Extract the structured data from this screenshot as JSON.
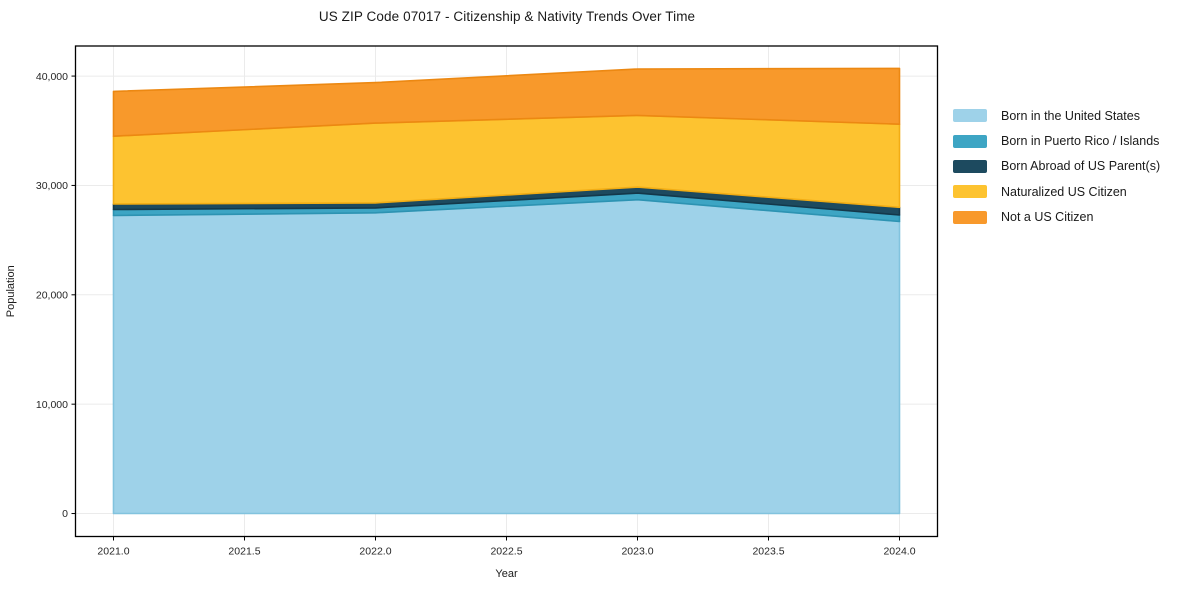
{
  "page": {
    "background": "#ffffff"
  },
  "chart_data": {
    "type": "area",
    "stacked": true,
    "title": "US ZIP Code 07017 - Citizenship & Nativity Trends Over Time",
    "xlabel": "Year",
    "ylabel": "Population",
    "x": [
      2021,
      2022,
      2023,
      2024
    ],
    "series": [
      {
        "name": "Born in the United States",
        "color": "#9ed2e9",
        "edge": "#82c3de",
        "values": [
          27250,
          27500,
          28700,
          26700
        ]
      },
      {
        "name": "Born in Puerto Rico / Islands",
        "color": "#3da5c4",
        "edge": "#2d93b2",
        "values": [
          550,
          450,
          600,
          600
        ]
      },
      {
        "name": "Born Abroad of US Parent(s)",
        "color": "#1d4a5f",
        "edge": "#14384a",
        "values": [
          500,
          450,
          550,
          700
        ]
      },
      {
        "name": "Naturalized US Citizen",
        "color": "#fdc330",
        "edge": "#f2ad14",
        "values": [
          6200,
          7300,
          6550,
          7600
        ]
      },
      {
        "name": "Not a US Citizen",
        "color": "#f8992b",
        "edge": "#ec8812",
        "values": [
          4100,
          3700,
          4250,
          5100
        ]
      }
    ],
    "cumulative_tops": {
      "2021": [
        27250,
        27800,
        28300,
        34500,
        38600
      ],
      "2022": [
        27500,
        27950,
        28400,
        35700,
        39400
      ],
      "2023": [
        28700,
        29300,
        29850,
        36400,
        40650
      ],
      "2024": [
        26700,
        27300,
        28000,
        35600,
        40700
      ]
    },
    "xlim": [
      2020.855,
      2024.145
    ],
    "ylim": [
      -2100,
      42750
    ],
    "xticks": [
      2021.0,
      2021.5,
      2022.0,
      2022.5,
      2023.0,
      2023.5,
      2024.0
    ],
    "yticks": [
      0,
      10000,
      20000,
      30000,
      40000
    ],
    "ytick_labels": [
      "0",
      "10,000",
      "20,000",
      "30,000",
      "40,000"
    ],
    "grid": true,
    "grid_color": "#ebebeb",
    "frame_color": "#000000",
    "tick_label_color": "#262626",
    "legend_position": "right-outside"
  }
}
